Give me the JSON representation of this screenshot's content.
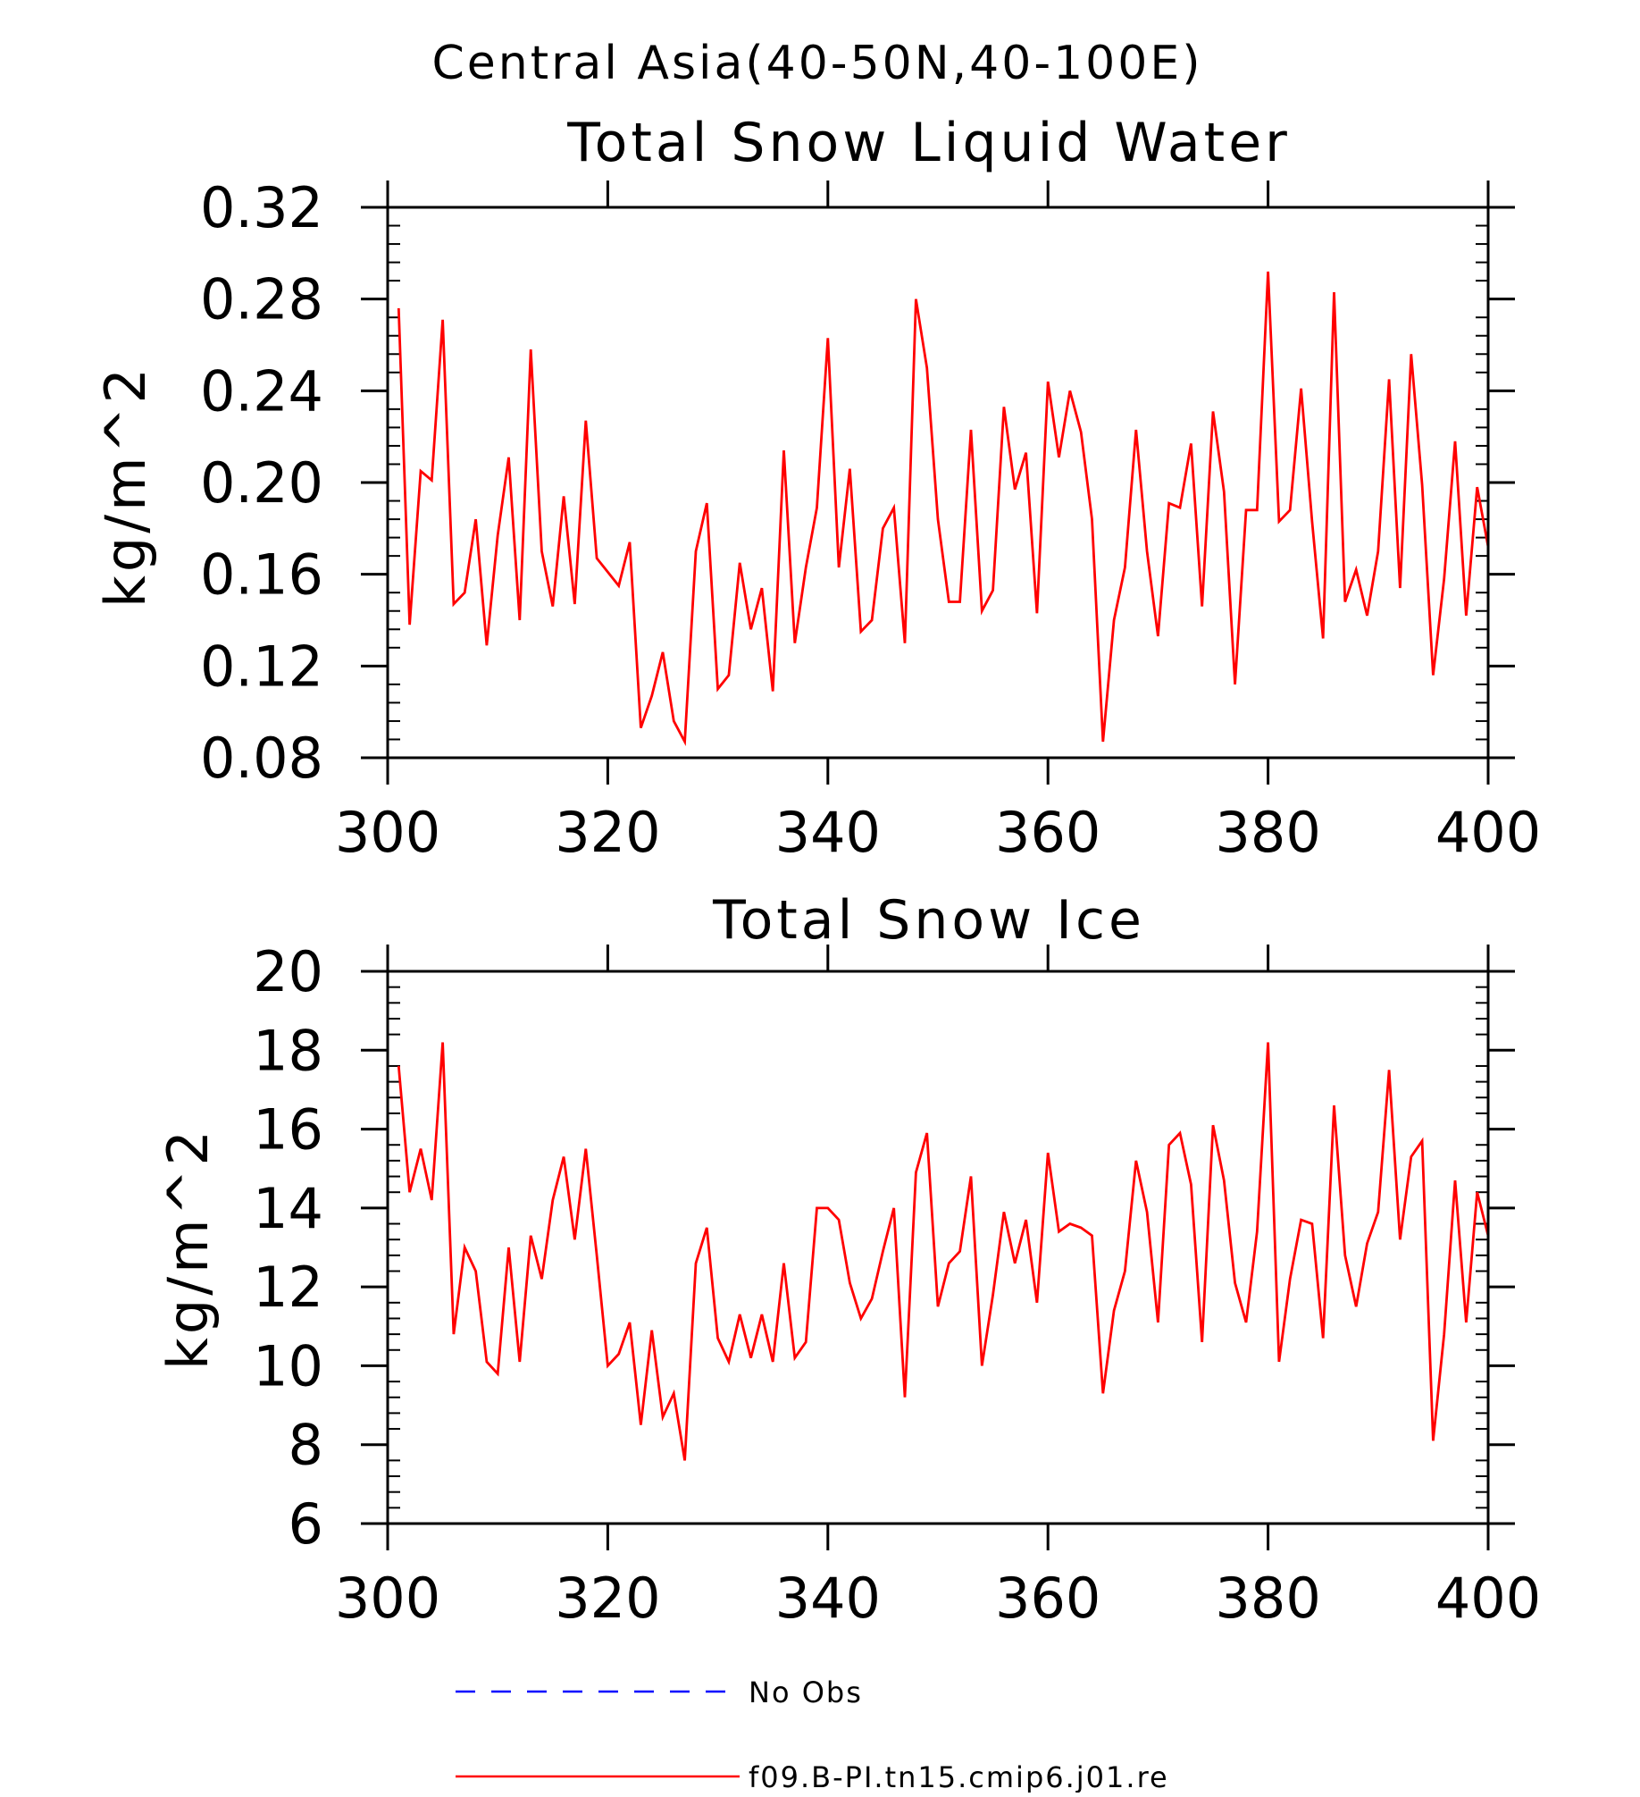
{
  "figure": {
    "title": "Central Asia(40-50N,40-100E)"
  },
  "colors": {
    "axis": "#000000",
    "model_line": "#ff0000",
    "obs_line": "#0000ff",
    "background": "#ffffff"
  },
  "chart_data": [
    {
      "type": "line",
      "title": "Total Snow Liquid Water",
      "xlabel": "",
      "ylabel": "kg/m^2",
      "xlim": [
        300,
        400
      ],
      "ylim": [
        0.08,
        0.32
      ],
      "xticks": [
        "300",
        "320",
        "340",
        "360",
        "380",
        "400"
      ],
      "xtick_values": [
        300,
        320,
        340,
        360,
        380,
        400
      ],
      "yticks": [
        "0.08",
        "0.12",
        "0.16",
        "0.20",
        "0.24",
        "0.28",
        "0.32"
      ],
      "ytick_values": [
        0.08,
        0.12,
        0.16,
        0.2,
        0.24,
        0.28,
        0.32
      ],
      "grid": false,
      "series": [
        {
          "name": "f09.B-PI.tn15.cmip6.j01.re",
          "x_start": 301,
          "x_step": 1,
          "values": [
            0.276,
            0.138,
            0.205,
            0.201,
            0.271,
            0.147,
            0.152,
            0.184,
            0.129,
            0.177,
            0.211,
            0.14,
            0.258,
            0.17,
            0.146,
            0.194,
            0.147,
            0.227,
            0.167,
            0.161,
            0.155,
            0.174,
            0.093,
            0.107,
            0.126,
            0.096,
            0.087,
            0.17,
            0.191,
            0.11,
            0.116,
            0.165,
            0.136,
            0.154,
            0.109,
            0.214,
            0.13,
            0.163,
            0.189,
            0.263,
            0.163,
            0.206,
            0.135,
            0.14,
            0.18,
            0.189,
            0.13,
            0.28,
            0.25,
            0.184,
            0.148,
            0.148,
            0.223,
            0.144,
            0.153,
            0.233,
            0.197,
            0.213,
            0.143,
            0.244,
            0.211,
            0.24,
            0.222,
            0.184,
            0.087,
            0.14,
            0.163,
            0.223,
            0.17,
            0.133,
            0.191,
            0.189,
            0.217,
            0.146,
            0.231,
            0.196,
            0.112,
            0.188,
            0.188,
            0.292,
            0.183,
            0.188,
            0.241,
            0.183,
            0.132,
            0.283,
            0.148,
            0.162,
            0.142,
            0.17,
            0.245,
            0.154,
            0.256,
            0.199,
            0.116,
            0.158,
            0.218,
            0.142,
            0.198,
            0.172
          ]
        }
      ]
    },
    {
      "type": "line",
      "title": "Total Snow Ice",
      "xlabel": "",
      "ylabel": "kg/m^2",
      "xlim": [
        300,
        400
      ],
      "ylim": [
        6,
        20
      ],
      "xticks": [
        "300",
        "320",
        "340",
        "360",
        "380",
        "400"
      ],
      "xtick_values": [
        300,
        320,
        340,
        360,
        380,
        400
      ],
      "yticks": [
        "6",
        "8",
        "10",
        "12",
        "14",
        "16",
        "18",
        "20"
      ],
      "ytick_values": [
        6,
        8,
        10,
        12,
        14,
        16,
        18,
        20
      ],
      "grid": false,
      "series": [
        {
          "name": "f09.B-PI.tn15.cmip6.j01.re",
          "x_start": 301,
          "x_step": 1,
          "values": [
            17.6,
            14.4,
            15.5,
            14.2,
            18.2,
            10.8,
            13.0,
            12.4,
            10.1,
            9.8,
            13.0,
            10.1,
            13.3,
            12.2,
            14.2,
            15.3,
            13.2,
            15.5,
            12.8,
            10.0,
            10.3,
            11.1,
            8.5,
            10.9,
            8.7,
            9.3,
            7.6,
            12.6,
            13.5,
            10.7,
            10.1,
            11.3,
            10.2,
            11.3,
            10.1,
            12.6,
            10.2,
            10.6,
            14.0,
            14.0,
            13.7,
            12.1,
            11.2,
            11.7,
            12.9,
            14.0,
            9.2,
            14.9,
            15.9,
            11.5,
            12.6,
            12.9,
            14.8,
            10.0,
            11.8,
            13.9,
            12.6,
            13.7,
            11.6,
            15.4,
            13.4,
            13.6,
            13.5,
            13.3,
            9.3,
            11.4,
            12.4,
            15.2,
            13.9,
            11.1,
            15.6,
            15.9,
            14.6,
            10.6,
            16.1,
            14.7,
            12.1,
            11.1,
            13.4,
            18.2,
            10.1,
            12.2,
            13.7,
            13.6,
            10.7,
            16.6,
            12.8,
            11.5,
            13.1,
            13.9,
            17.5,
            13.2,
            15.3,
            15.7,
            8.1,
            10.8,
            14.7,
            11.1,
            14.4,
            13.3
          ]
        }
      ]
    }
  ],
  "legend": {
    "items": [
      {
        "label": "No Obs",
        "style": "dashed",
        "color": "#0000ff"
      },
      {
        "label": "f09.B-PI.tn15.cmip6.j01.re",
        "style": "solid",
        "color": "#ff0000"
      }
    ]
  }
}
